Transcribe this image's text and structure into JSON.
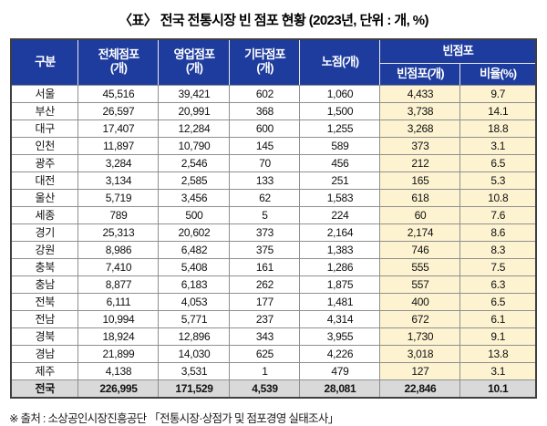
{
  "title": "〈표〉 전국 전통시장 빈 점포 현황 (2023년, 단위 : 개, %)",
  "colors": {
    "header_bg": "#1e3c9e",
    "header_text": "#ffffff",
    "vacant_column_bg": "#fdf3d1",
    "total_row_bg": "#d9d9d9",
    "grid_line": "#8f8f8f"
  },
  "table": {
    "header": {
      "gubun": "구분",
      "total_label": "전체점포",
      "total_unit": "(개)",
      "operating_label": "영업점포",
      "operating_unit": "(개)",
      "other_label": "기타점포",
      "other_unit": "(개)",
      "street": "노점(개)",
      "vacant_group": "빈점포",
      "vacant_count": "빈점포(개)",
      "vacant_ratio": "비율(%)"
    },
    "rows": [
      {
        "region": "서울",
        "total_stores": "45,516",
        "operating_stores": "39,421",
        "other_stores": "602",
        "street_stalls": "1,060",
        "vacant_stores": "4,433",
        "vacant_ratio": "9.7"
      },
      {
        "region": "부산",
        "total_stores": "26,597",
        "operating_stores": "20,991",
        "other_stores": "368",
        "street_stalls": "1,500",
        "vacant_stores": "3,738",
        "vacant_ratio": "14.1"
      },
      {
        "region": "대구",
        "total_stores": "17,407",
        "operating_stores": "12,284",
        "other_stores": "600",
        "street_stalls": "1,255",
        "vacant_stores": "3,268",
        "vacant_ratio": "18.8"
      },
      {
        "region": "인천",
        "total_stores": "11,897",
        "operating_stores": "10,790",
        "other_stores": "145",
        "street_stalls": "589",
        "vacant_stores": "373",
        "vacant_ratio": "3.1"
      },
      {
        "region": "광주",
        "total_stores": "3,284",
        "operating_stores": "2,546",
        "other_stores": "70",
        "street_stalls": "456",
        "vacant_stores": "212",
        "vacant_ratio": "6.5"
      },
      {
        "region": "대전",
        "total_stores": "3,134",
        "operating_stores": "2,585",
        "other_stores": "133",
        "street_stalls": "251",
        "vacant_stores": "165",
        "vacant_ratio": "5.3"
      },
      {
        "region": "울산",
        "total_stores": "5,719",
        "operating_stores": "3,456",
        "other_stores": "62",
        "street_stalls": "1,583",
        "vacant_stores": "618",
        "vacant_ratio": "10.8"
      },
      {
        "region": "세종",
        "total_stores": "789",
        "operating_stores": "500",
        "other_stores": "5",
        "street_stalls": "224",
        "vacant_stores": "60",
        "vacant_ratio": "7.6"
      },
      {
        "region": "경기",
        "total_stores": "25,313",
        "operating_stores": "20,602",
        "other_stores": "373",
        "street_stalls": "2,164",
        "vacant_stores": "2,174",
        "vacant_ratio": "8.6"
      },
      {
        "region": "강원",
        "total_stores": "8,986",
        "operating_stores": "6,482",
        "other_stores": "375",
        "street_stalls": "1,383",
        "vacant_stores": "746",
        "vacant_ratio": "8.3"
      },
      {
        "region": "충북",
        "total_stores": "7,410",
        "operating_stores": "5,408",
        "other_stores": "161",
        "street_stalls": "1,286",
        "vacant_stores": "555",
        "vacant_ratio": "7.5"
      },
      {
        "region": "충남",
        "total_stores": "8,877",
        "operating_stores": "6,183",
        "other_stores": "262",
        "street_stalls": "1,875",
        "vacant_stores": "557",
        "vacant_ratio": "6.3"
      },
      {
        "region": "전북",
        "total_stores": "6,111",
        "operating_stores": "4,053",
        "other_stores": "177",
        "street_stalls": "1,481",
        "vacant_stores": "400",
        "vacant_ratio": "6.5"
      },
      {
        "region": "전남",
        "total_stores": "10,994",
        "operating_stores": "5,771",
        "other_stores": "237",
        "street_stalls": "4,314",
        "vacant_stores": "672",
        "vacant_ratio": "6.1"
      },
      {
        "region": "경북",
        "total_stores": "18,924",
        "operating_stores": "12,896",
        "other_stores": "343",
        "street_stalls": "3,955",
        "vacant_stores": "1,730",
        "vacant_ratio": "9.1"
      },
      {
        "region": "경남",
        "total_stores": "21,899",
        "operating_stores": "14,030",
        "other_stores": "625",
        "street_stalls": "4,226",
        "vacant_stores": "3,018",
        "vacant_ratio": "13.8"
      },
      {
        "region": "제주",
        "total_stores": "4,138",
        "operating_stores": "3,531",
        "other_stores": "1",
        "street_stalls": "479",
        "vacant_stores": "127",
        "vacant_ratio": "3.1"
      }
    ],
    "total_row": {
      "region": "전국",
      "total_stores": "226,995",
      "operating_stores": "171,529",
      "other_stores": "4,539",
      "street_stalls": "28,081",
      "vacant_stores": "22,846",
      "vacant_ratio": "10.1"
    }
  },
  "footer": {
    "source": "※ 출처 : 소상공인시장진흥공단 「전통시장·상점가 및 점포경영 실태조사」"
  }
}
